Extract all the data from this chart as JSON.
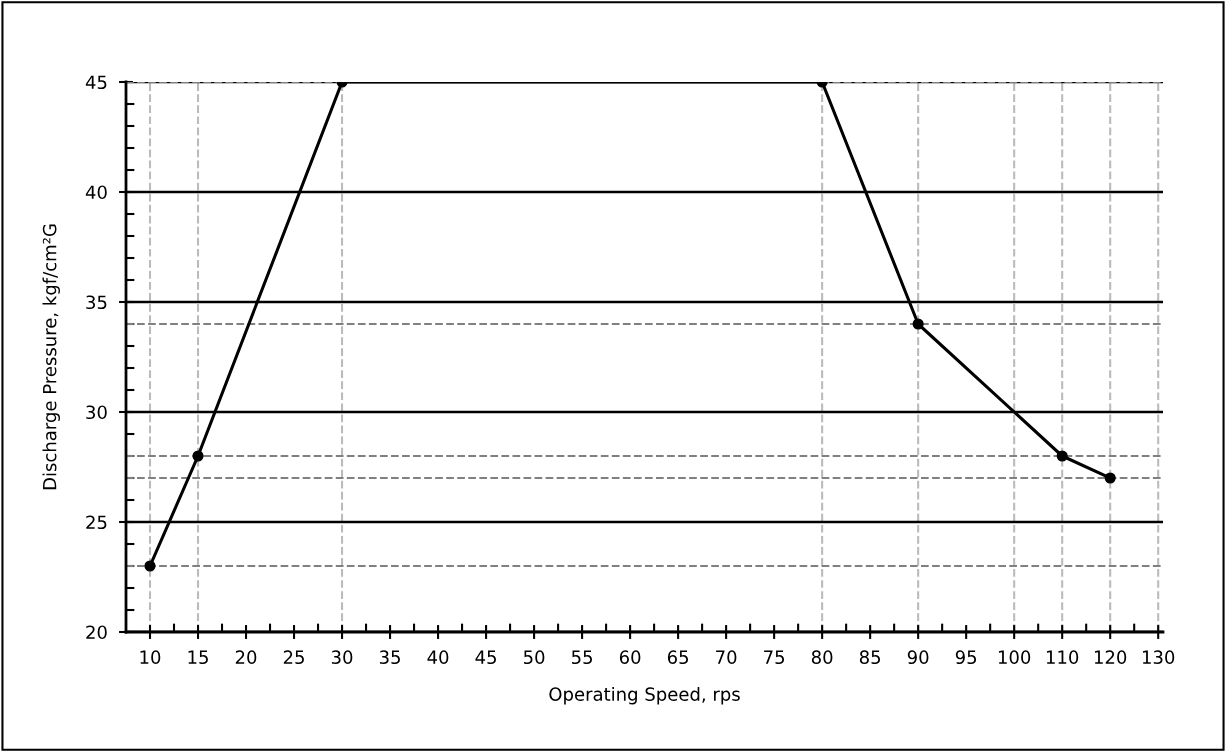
{
  "chart_data": {
    "type": "line",
    "xlabel": "Operating Speed, rps",
    "ylabel": "Discharge Pressure, kgf/cm²G",
    "categories": [
      "10",
      "15",
      "20",
      "25",
      "30",
      "35",
      "40",
      "45",
      "50",
      "55",
      "60",
      "65",
      "70",
      "75",
      "80",
      "85",
      "90",
      "95",
      "100",
      "110",
      "120",
      "130"
    ],
    "series": [
      {
        "color": "#000000",
        "values": [
          23,
          28,
          null,
          null,
          45,
          null,
          null,
          null,
          null,
          null,
          null,
          null,
          null,
          null,
          45,
          null,
          34,
          null,
          null,
          28,
          27,
          null
        ]
      }
    ],
    "ylim": [
      20,
      45
    ],
    "yticks": [
      20,
      25,
      30,
      35,
      40,
      45
    ],
    "grid": "y",
    "marker": "circle",
    "line_style": "solid",
    "ref_lines": [
      {
        "axis": "y",
        "value": 23,
        "color": "#808080",
        "line_style": "dashed"
      },
      {
        "axis": "y",
        "value": 27,
        "color": "#808080",
        "line_style": "dashed"
      },
      {
        "axis": "y",
        "value": 28,
        "color": "#808080",
        "line_style": "dashed"
      },
      {
        "axis": "y",
        "value": 34,
        "color": "#808080",
        "line_style": "dashed"
      },
      {
        "axis": "y",
        "value": 45,
        "color": "#808080",
        "line_style": "dashed"
      },
      {
        "axis": "x",
        "value": "10",
        "color": "#bbbbbb",
        "line_style": "dashed"
      },
      {
        "axis": "x",
        "value": "15",
        "color": "#bbbbbb",
        "line_style": "dashed"
      },
      {
        "axis": "x",
        "value": "30",
        "color": "#bbbbbb",
        "line_style": "dashed"
      },
      {
        "axis": "x",
        "value": "80",
        "color": "#bbbbbb",
        "line_style": "dashed"
      },
      {
        "axis": "x",
        "value": "90",
        "color": "#bbbbbb",
        "line_style": "dashed"
      },
      {
        "axis": "x",
        "value": "100",
        "color": "#bbbbbb",
        "line_style": "dashed"
      },
      {
        "axis": "x",
        "value": "110",
        "color": "#bbbbbb",
        "line_style": "dashed"
      },
      {
        "axis": "x",
        "value": "120",
        "color": "#bbbbbb",
        "line_style": "dashed"
      },
      {
        "axis": "x",
        "value": "130",
        "color": "#bbbbbb",
        "line_style": "dashed"
      }
    ]
  }
}
